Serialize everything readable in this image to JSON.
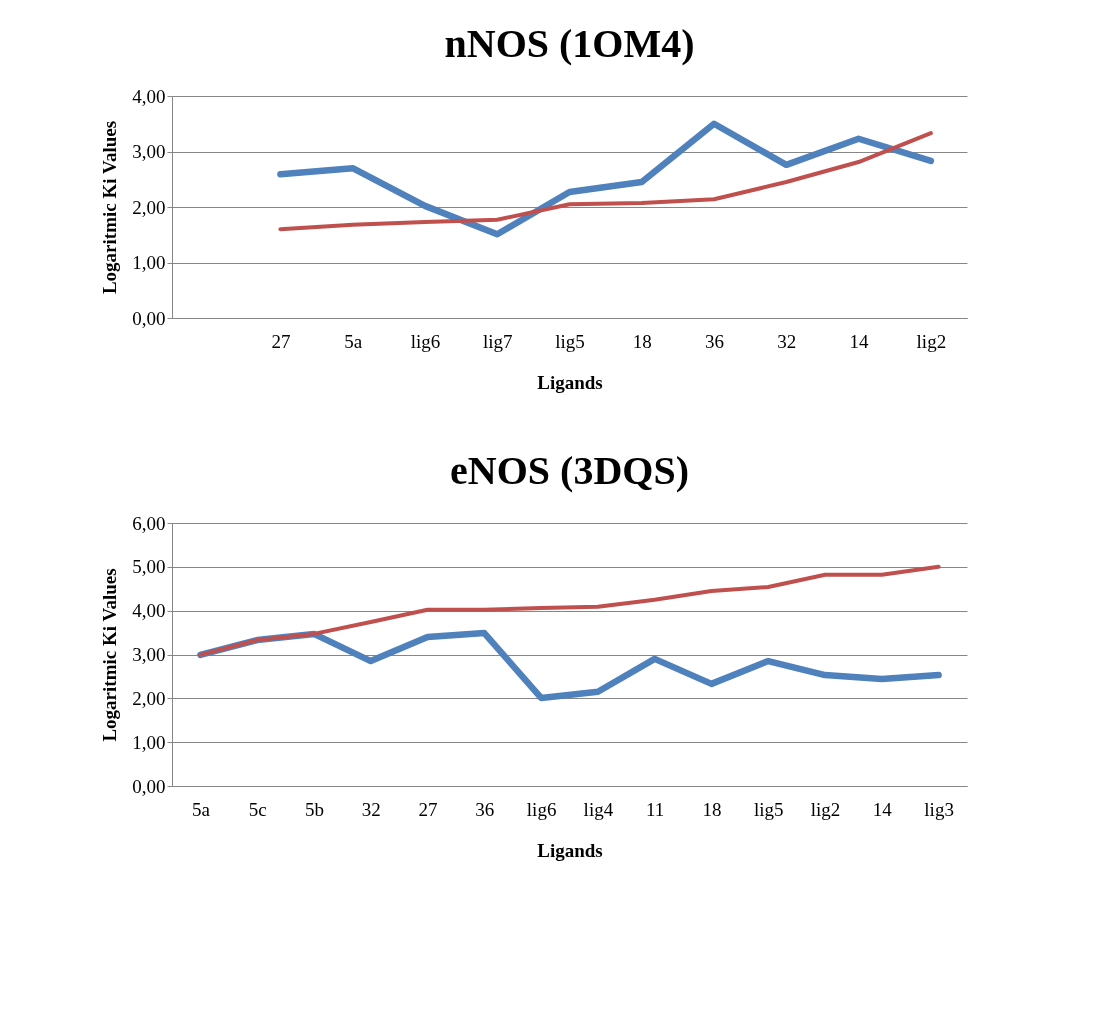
{
  "chart_data": [
    {
      "type": "line",
      "title": "nNOS (1OM4)",
      "xlabel": "Ligands",
      "ylabel": "Logaritmic Ki Values",
      "categories": [
        null,
        "27",
        "5a",
        "lig6",
        "lig7",
        "lig5",
        "18",
        "36",
        "32",
        "14",
        "lig2"
      ],
      "series": [
        {
          "color": "#4f81bd",
          "values": [
            null,
            2.59,
            2.7,
            2.02,
            1.51,
            2.27,
            2.45,
            3.5,
            2.76,
            3.23,
            2.83
          ]
        },
        {
          "color": "#c0504d",
          "values": [
            null,
            1.6,
            1.68,
            1.73,
            1.77,
            2.05,
            2.07,
            2.14,
            2.45,
            2.81,
            3.33
          ]
        }
      ],
      "ylim": [
        0,
        4
      ],
      "yticks": [
        {
          "value": 0,
          "label": "0,00"
        },
        {
          "value": 1,
          "label": "1,00"
        },
        {
          "value": 2,
          "label": "2,00"
        },
        {
          "value": 3,
          "label": "3,00"
        },
        {
          "value": 4,
          "label": "4,00"
        }
      ],
      "grid": "y",
      "line_style": "solid"
    },
    {
      "type": "line",
      "title": "eNOS (3DQS)",
      "xlabel": "Ligands",
      "ylabel": "Logaritmic Ki Values",
      "categories": [
        "5a",
        "5c",
        "5b",
        "32",
        "27",
        "36",
        "lig6",
        "lig4",
        "11",
        "18",
        "lig5",
        "lig2",
        "14",
        "lig3"
      ],
      "series": [
        {
          "color": "#4f81bd",
          "values": [
            2.99,
            3.33,
            3.47,
            2.85,
            3.4,
            3.49,
            2.01,
            2.15,
            2.9,
            2.33,
            2.85,
            2.53,
            2.44,
            2.53
          ]
        },
        {
          "color": "#c0504d",
          "values": [
            2.99,
            3.33,
            3.47,
            3.74,
            4.02,
            4.02,
            4.06,
            4.09,
            4.25,
            4.45,
            4.54,
            4.82,
            4.82,
            5.0
          ]
        }
      ],
      "ylim": [
        0,
        6
      ],
      "yticks": [
        {
          "value": 0,
          "label": "0,00"
        },
        {
          "value": 1,
          "label": "1,00"
        },
        {
          "value": 2,
          "label": "2,00"
        },
        {
          "value": 3,
          "label": "3,00"
        },
        {
          "value": 4,
          "label": "4,00"
        },
        {
          "value": 5,
          "label": "5,00"
        },
        {
          "value": 6,
          "label": "6,00"
        }
      ],
      "grid": "y",
      "line_style": "solid"
    }
  ]
}
